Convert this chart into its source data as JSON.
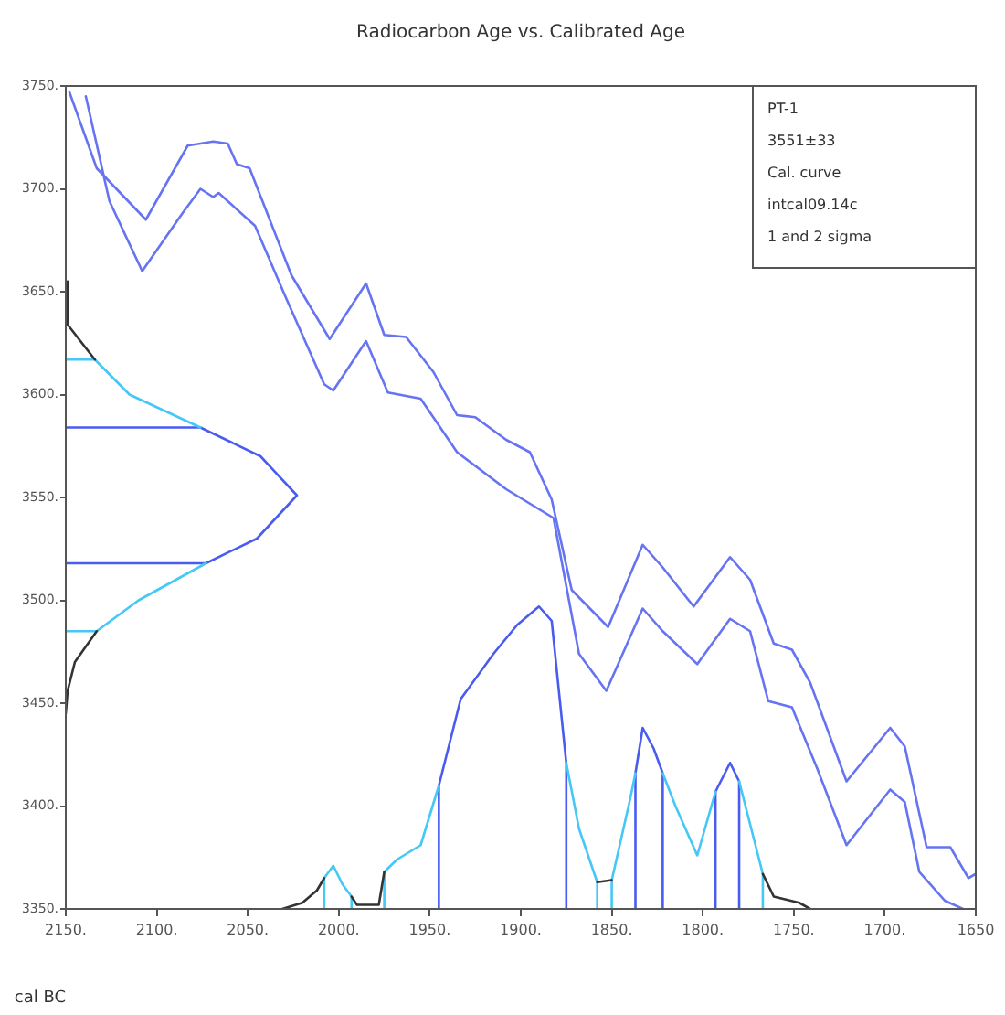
{
  "chart_data": {
    "type": "line",
    "title": "Radiocarbon Age vs. Calibrated Age",
    "xlabel": "cal BC",
    "xlim": [
      2150,
      1650
    ],
    "xticks": [
      {
        "value": 2150,
        "label": "2150."
      },
      {
        "value": 2100,
        "label": "2100."
      },
      {
        "value": 2050,
        "label": "2050."
      },
      {
        "value": 2000,
        "label": "2000."
      },
      {
        "value": 1950,
        "label": "1950."
      },
      {
        "value": 1900,
        "label": "1900."
      },
      {
        "value": 1850,
        "label": "1850."
      },
      {
        "value": 1800,
        "label": "1800."
      },
      {
        "value": 1750,
        "label": "1750."
      },
      {
        "value": 1700,
        "label": "1700."
      },
      {
        "value": 1650,
        "label": "1650"
      }
    ],
    "ylim": [
      3350,
      3750
    ],
    "yticks": [
      {
        "value": 3350,
        "label": "3350."
      },
      {
        "value": 3400,
        "label": "3400."
      },
      {
        "value": 3450,
        "label": "3450."
      },
      {
        "value": 3500,
        "label": "3500."
      },
      {
        "value": 3550,
        "label": "3550."
      },
      {
        "value": 3600,
        "label": "3600."
      },
      {
        "value": 3650,
        "label": "3650."
      },
      {
        "value": 3700,
        "label": "3700."
      },
      {
        "value": 3750,
        "label": "3750."
      }
    ],
    "grid": false,
    "legend": false,
    "marker": "none",
    "line_style": "solid",
    "annotations": [
      "PT-1",
      "3551±33",
      "Cal. curve",
      "intcal09.14c",
      "1 and 2 sigma"
    ],
    "series": [
      {
        "color": "#6674f2",
        "x": [
          2148,
          2133,
          2106,
          2083,
          2069,
          2061,
          2056,
          2049,
          2026,
          2005,
          1985,
          1975,
          1963,
          1948,
          1935,
          1925,
          1908,
          1895,
          1883,
          1872,
          1852,
          1833,
          1822,
          1805,
          1785,
          1774,
          1761,
          1751,
          1741,
          1721,
          1697,
          1689,
          1677,
          1664,
          1654,
          1650
        ],
        "values": [
          3747,
          3710,
          3685,
          3721,
          3723,
          3722,
          3712,
          3710,
          3658,
          3627,
          3654,
          3629,
          3628,
          3611,
          3590,
          3589,
          3578,
          3572,
          3549,
          3505,
          3487,
          3527,
          3516,
          3497,
          3521,
          3510,
          3479,
          3476,
          3460,
          3412,
          3438,
          3429,
          3380,
          3380,
          3365,
          3367
        ]
      },
      {
        "color": "#6674f2",
        "x": [
          2139,
          2126,
          2108,
          2086,
          2076,
          2069,
          2066,
          2046,
          2029,
          2008,
          2003,
          1985,
          1973,
          1955,
          1935,
          1908,
          1895,
          1882,
          1868,
          1853,
          1833,
          1822,
          1803,
          1785,
          1774,
          1764,
          1751,
          1737,
          1721,
          1697,
          1689,
          1681,
          1667,
          1657
        ],
        "values": [
          3745,
          3694,
          3660,
          3688,
          3700,
          3696,
          3698,
          3682,
          3647,
          3605,
          3602,
          3626,
          3601,
          3598,
          3572,
          3554,
          3547,
          3540,
          3474,
          3456,
          3496,
          3485,
          3469,
          3491,
          3485,
          3451,
          3448,
          3418,
          3381,
          3408,
          3402,
          3368,
          3354,
          3350
        ]
      },
      {
        "color": "#333333",
        "x": [
          2150,
          2149,
          2134
        ],
        "values": [
          3655,
          3634,
          3617
        ]
      },
      {
        "color": "#333333",
        "x": [
          2133,
          2145,
          2149,
          2150
        ],
        "values": [
          3485,
          3470,
          3456,
          3445
        ]
      },
      {
        "color": "#45c8f5",
        "x": [
          2150,
          2134,
          2115,
          2076
        ],
        "values": [
          3617,
          3617,
          3600,
          3584
        ]
      },
      {
        "color": "#45c8f5",
        "x": [
          2073,
          2110,
          2133,
          2150
        ],
        "values": [
          3518,
          3500,
          3485,
          3485
        ]
      },
      {
        "color": "#4a5cf0",
        "x": [
          2150,
          2076,
          2043,
          2023,
          2045,
          2073,
          2150
        ],
        "values": [
          3584,
          3584,
          3570,
          3551,
          3530,
          3518,
          3518
        ]
      },
      {
        "color": "#333333",
        "x": [
          2031,
          2020,
          2012,
          2008
        ],
        "values": [
          3350,
          3353,
          3359,
          3365
        ]
      },
      {
        "color": "#333333",
        "x": [
          1993,
          1990,
          1978,
          1975
        ],
        "values": [
          3356,
          3352,
          3352,
          3368
        ]
      },
      {
        "color": "#333333",
        "x": [
          1858,
          1850
        ],
        "values": [
          3363,
          3364
        ]
      },
      {
        "color": "#333333",
        "x": [
          1767,
          1761,
          1747,
          1741
        ],
        "values": [
          3367,
          3356,
          3353,
          3350
        ]
      },
      {
        "color": "#45c8f5",
        "x": [
          2008,
          2008,
          2003,
          1998,
          1993,
          1993
        ],
        "values": [
          3350,
          3365,
          3371,
          3362,
          3356,
          3350
        ]
      },
      {
        "color": "#45c8f5",
        "x": [
          1975,
          1975,
          1968,
          1955,
          1945
        ],
        "values": [
          3350,
          3368,
          3374,
          3381,
          3410
        ]
      },
      {
        "color": "#45c8f5",
        "x": [
          1875,
          1868,
          1858,
          1858
        ],
        "values": [
          3421,
          3389,
          3363,
          3350
        ]
      },
      {
        "color": "#45c8f5",
        "x": [
          1850,
          1850,
          1840,
          1837
        ],
        "values": [
          3350,
          3364,
          3403,
          3416
        ]
      },
      {
        "color": "#45c8f5",
        "x": [
          1822,
          1815,
          1803,
          1793
        ],
        "values": [
          3416,
          3400,
          3376,
          3407
        ]
      },
      {
        "color": "#45c8f5",
        "x": [
          1780,
          1767,
          1767
        ],
        "values": [
          3412,
          3367,
          3350
        ]
      },
      {
        "color": "#4a5cf0",
        "x": [
          1945,
          1945,
          1933,
          1915,
          1902,
          1890,
          1883,
          1875,
          1875
        ],
        "values": [
          3350,
          3410,
          3452,
          3474,
          3488,
          3497,
          3490,
          3421,
          3350
        ]
      },
      {
        "color": "#4a5cf0",
        "x": [
          1837,
          1837,
          1833,
          1827,
          1822,
          1822
        ],
        "values": [
          3350,
          3416,
          3438,
          3428,
          3416,
          3350
        ]
      },
      {
        "color": "#4a5cf0",
        "x": [
          1793,
          1793,
          1785,
          1780,
          1780
        ],
        "values": [
          3350,
          3407,
          3421,
          3412,
          3350
        ]
      }
    ]
  }
}
